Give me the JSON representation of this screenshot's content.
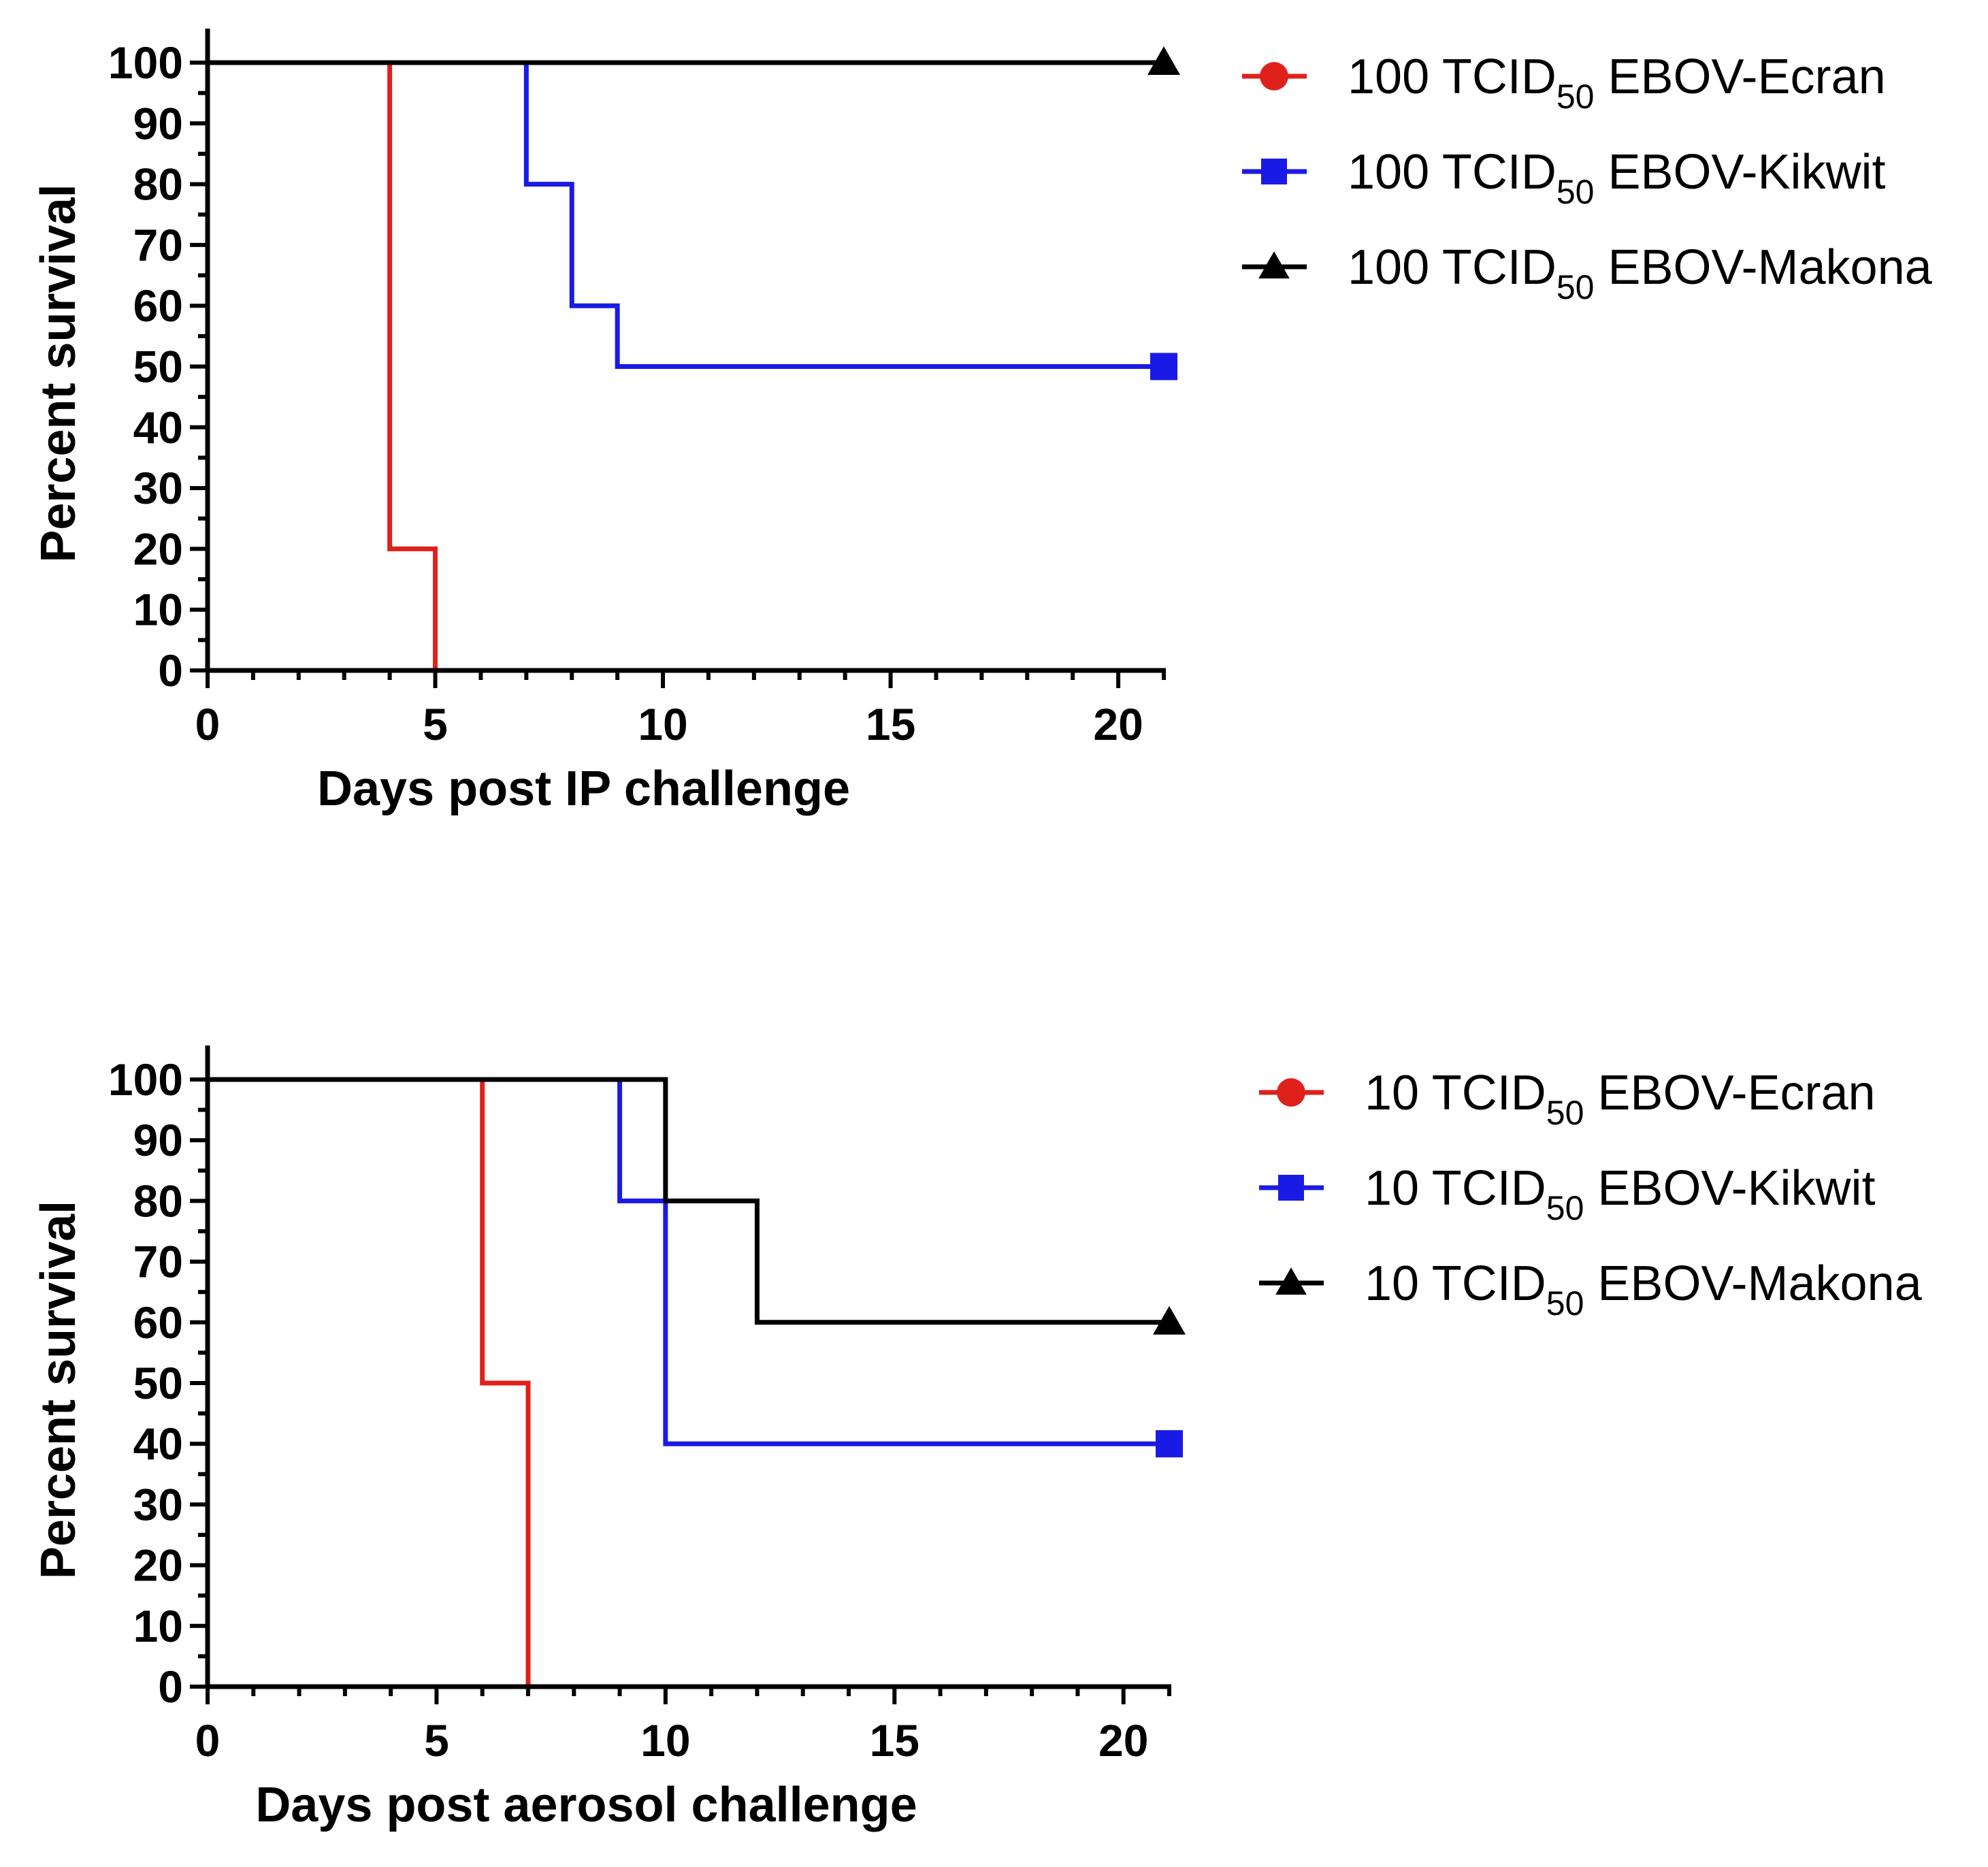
{
  "chart_data": [
    {
      "type": "line",
      "step": true,
      "xlabel": "Days post IP challenge",
      "ylabel": "Percent survival",
      "xlim": [
        0,
        21
      ],
      "ylim": [
        0,
        100
      ],
      "xticks": [
        0,
        5,
        10,
        15,
        20
      ],
      "yticks": [
        0,
        10,
        20,
        30,
        40,
        50,
        60,
        70,
        80,
        90,
        100
      ],
      "legend_position": "right",
      "series": [
        {
          "name": "100 TCID50 EBOV-Ecran",
          "label_main": "100 TCID",
          "label_sub": "50",
          "label_rest": " EBOV-Ecran",
          "color": "#e0201b",
          "marker": "circle",
          "x": [
            0,
            4,
            5
          ],
          "y": [
            100,
            20,
            0
          ]
        },
        {
          "name": "100 TCID50 EBOV-Kikwit",
          "label_main": "100 TCID",
          "label_sub": "50",
          "label_rest": " EBOV-Kikwit",
          "color": "#1a1ae6",
          "marker": "square",
          "x": [
            0,
            7,
            8,
            9,
            21
          ],
          "y": [
            100,
            80,
            60,
            50,
            50
          ]
        },
        {
          "name": "100 TCID50 EBOV-Makona",
          "label_main": "100 TCID",
          "label_sub": "50",
          "label_rest": " EBOV-Makona",
          "color": "#000000",
          "marker": "triangle",
          "x": [
            0,
            21
          ],
          "y": [
            100,
            100
          ]
        }
      ]
    },
    {
      "type": "line",
      "step": true,
      "xlabel": "Days post aerosol challenge",
      "ylabel": "Percent survival",
      "xlim": [
        0,
        21
      ],
      "ylim": [
        0,
        100
      ],
      "xticks": [
        0,
        5,
        10,
        15,
        20
      ],
      "yticks": [
        0,
        10,
        20,
        30,
        40,
        50,
        60,
        70,
        80,
        90,
        100
      ],
      "legend_position": "right",
      "series": [
        {
          "name": "10 TCID50 EBOV-Ecran",
          "label_main": "10 TCID",
          "label_sub": "50",
          "label_rest": " EBOV-Ecran",
          "color": "#e0201b",
          "marker": "circle",
          "x": [
            0,
            6,
            7
          ],
          "y": [
            100,
            50,
            0
          ]
        },
        {
          "name": "10 TCID50 EBOV-Kikwit",
          "label_main": "10 TCID",
          "label_sub": "50",
          "label_rest": " EBOV-Kikwit",
          "color": "#1a1ae6",
          "marker": "square",
          "x": [
            0,
            9,
            10,
            21
          ],
          "y": [
            100,
            80,
            40,
            40
          ]
        },
        {
          "name": "10 TCID50 EBOV-Makona",
          "label_main": "10 TCID",
          "label_sub": "50",
          "label_rest": " EBOV-Makona",
          "color": "#000000",
          "marker": "triangle",
          "x": [
            0,
            10,
            12,
            21
          ],
          "y": [
            100,
            80,
            60,
            60
          ]
        }
      ]
    }
  ]
}
